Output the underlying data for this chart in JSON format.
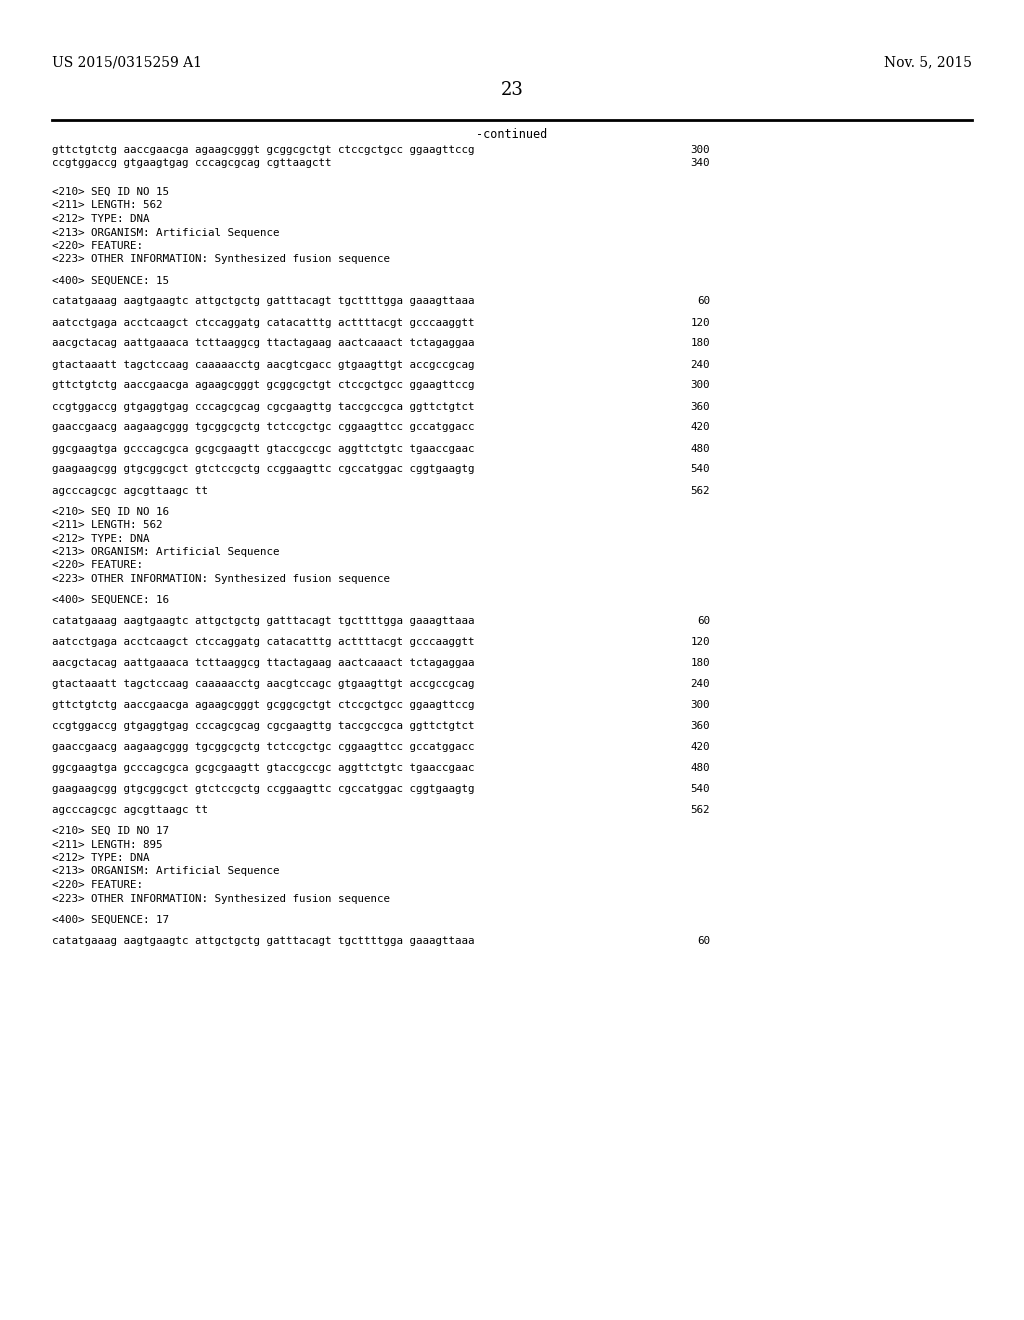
{
  "patent_number": "US 2015/0315259 A1",
  "date": "Nov. 5, 2015",
  "page_number": "23",
  "continued_label": "-continued",
  "background_color": "#ffffff",
  "text_color": "#000000",
  "lines": [
    {
      "text": "gttctgtctg aaccgaacga agaagcgggt gcggcgctgt ctccgctgcc ggaagttccg",
      "num": "300",
      "type": "seq"
    },
    {
      "text": "ccgtggaccg gtgaagtgag cccagcgcag cgttaagctt",
      "num": "340",
      "type": "seq"
    },
    {
      "text": "",
      "type": "blank"
    },
    {
      "text": "",
      "type": "blank"
    },
    {
      "text": "<210> SEQ ID NO 15",
      "type": "meta"
    },
    {
      "text": "<211> LENGTH: 562",
      "type": "meta"
    },
    {
      "text": "<212> TYPE: DNA",
      "type": "meta"
    },
    {
      "text": "<213> ORGANISM: Artificial Sequence",
      "type": "meta"
    },
    {
      "text": "<220> FEATURE:",
      "type": "meta"
    },
    {
      "text": "<223> OTHER INFORMATION: Synthesized fusion sequence",
      "type": "meta"
    },
    {
      "text": "",
      "type": "blank"
    },
    {
      "text": "<400> SEQUENCE: 15",
      "type": "meta"
    },
    {
      "text": "",
      "type": "blank"
    },
    {
      "text": "catatgaaag aagtgaagtc attgctgctg gatttacagt tgcttttgga gaaagttaaa",
      "num": "60",
      "type": "seq"
    },
    {
      "text": "",
      "type": "blank"
    },
    {
      "text": "aatcctgaga acctcaagct ctccaggatg catacatttg acttttacgt gcccaaggtt",
      "num": "120",
      "type": "seq"
    },
    {
      "text": "",
      "type": "blank"
    },
    {
      "text": "aacgctacag aattgaaaca tcttaaggcg ttactagaag aactcaaact tctagaggaa",
      "num": "180",
      "type": "seq"
    },
    {
      "text": "",
      "type": "blank"
    },
    {
      "text": "gtactaaatt tagctccaag caaaaacctg aacgtcgacc gtgaagttgt accgccgcag",
      "num": "240",
      "type": "seq"
    },
    {
      "text": "",
      "type": "blank"
    },
    {
      "text": "gttctgtctg aaccgaacga agaagcgggt gcggcgctgt ctccgctgcc ggaagttccg",
      "num": "300",
      "type": "seq"
    },
    {
      "text": "",
      "type": "blank"
    },
    {
      "text": "ccgtggaccg gtgaggtgag cccagcgcag cgcgaagttg taccgccgca ggttctgtct",
      "num": "360",
      "type": "seq"
    },
    {
      "text": "",
      "type": "blank"
    },
    {
      "text": "gaaccgaacg aagaagcggg tgcggcgctg tctccgctgc cggaagttcc gccatggacc",
      "num": "420",
      "type": "seq"
    },
    {
      "text": "",
      "type": "blank"
    },
    {
      "text": "ggcgaagtga gcccagcgca gcgcgaagtt gtaccgccgc aggttctgtc tgaaccgaac",
      "num": "480",
      "type": "seq"
    },
    {
      "text": "",
      "type": "blank"
    },
    {
      "text": "gaagaagcgg gtgcggcgct gtctccgctg ccggaagttc cgccatggac cggtgaagtg",
      "num": "540",
      "type": "seq"
    },
    {
      "text": "",
      "type": "blank"
    },
    {
      "text": "agcccagcgc agcgttaagc tt",
      "num": "562",
      "type": "seq"
    },
    {
      "text": "",
      "type": "blank"
    },
    {
      "text": "<210> SEQ ID NO 16",
      "type": "meta"
    },
    {
      "text": "<211> LENGTH: 562",
      "type": "meta"
    },
    {
      "text": "<212> TYPE: DNA",
      "type": "meta"
    },
    {
      "text": "<213> ORGANISM: Artificial Sequence",
      "type": "meta"
    },
    {
      "text": "<220> FEATURE:",
      "type": "meta"
    },
    {
      "text": "<223> OTHER INFORMATION: Synthesized fusion sequence",
      "type": "meta"
    },
    {
      "text": "",
      "type": "blank"
    },
    {
      "text": "<400> SEQUENCE: 16",
      "type": "meta"
    },
    {
      "text": "",
      "type": "blank"
    },
    {
      "text": "catatgaaag aagtgaagtc attgctgctg gatttacagt tgcttttgga gaaagttaaa",
      "num": "60",
      "type": "seq"
    },
    {
      "text": "",
      "type": "blank"
    },
    {
      "text": "aatcctgaga acctcaagct ctccaggatg catacatttg acttttacgt gcccaaggtt",
      "num": "120",
      "type": "seq"
    },
    {
      "text": "",
      "type": "blank"
    },
    {
      "text": "aacgctacag aattgaaaca tcttaaggcg ttactagaag aactcaaact tctagaggaa",
      "num": "180",
      "type": "seq"
    },
    {
      "text": "",
      "type": "blank"
    },
    {
      "text": "gtactaaatt tagctccaag caaaaacctg aacgtccagc gtgaagttgt accgccgcag",
      "num": "240",
      "type": "seq"
    },
    {
      "text": "",
      "type": "blank"
    },
    {
      "text": "gttctgtctg aaccgaacga agaagcgggt gcggcgctgt ctccgctgcc ggaagttccg",
      "num": "300",
      "type": "seq"
    },
    {
      "text": "",
      "type": "blank"
    },
    {
      "text": "ccgtggaccg gtgaggtgag cccagcgcag cgcgaagttg taccgccgca ggttctgtct",
      "num": "360",
      "type": "seq"
    },
    {
      "text": "",
      "type": "blank"
    },
    {
      "text": "gaaccgaacg aagaagcggg tgcggcgctg tctccgctgc cggaagttcc gccatggacc",
      "num": "420",
      "type": "seq"
    },
    {
      "text": "",
      "type": "blank"
    },
    {
      "text": "ggcgaagtga gcccagcgca gcgcgaagtt gtaccgccgc aggttctgtc tgaaccgaac",
      "num": "480",
      "type": "seq"
    },
    {
      "text": "",
      "type": "blank"
    },
    {
      "text": "gaagaagcgg gtgcggcgct gtctccgctg ccggaagttc cgccatggac cggtgaagtg",
      "num": "540",
      "type": "seq"
    },
    {
      "text": "",
      "type": "blank"
    },
    {
      "text": "agcccagcgc agcgttaagc tt",
      "num": "562",
      "type": "seq"
    },
    {
      "text": "",
      "type": "blank"
    },
    {
      "text": "<210> SEQ ID NO 17",
      "type": "meta"
    },
    {
      "text": "<211> LENGTH: 895",
      "type": "meta"
    },
    {
      "text": "<212> TYPE: DNA",
      "type": "meta"
    },
    {
      "text": "<213> ORGANISM: Artificial Sequence",
      "type": "meta"
    },
    {
      "text": "<220> FEATURE:",
      "type": "meta"
    },
    {
      "text": "<223> OTHER INFORMATION: Synthesized fusion sequence",
      "type": "meta"
    },
    {
      "text": "",
      "type": "blank"
    },
    {
      "text": "<400> SEQUENCE: 17",
      "type": "meta"
    },
    {
      "text": "",
      "type": "blank"
    },
    {
      "text": "catatgaaag aagtgaagtc attgctgctg gatttacagt tgcttttgga gaaagttaaa",
      "num": "60",
      "type": "seq"
    }
  ]
}
